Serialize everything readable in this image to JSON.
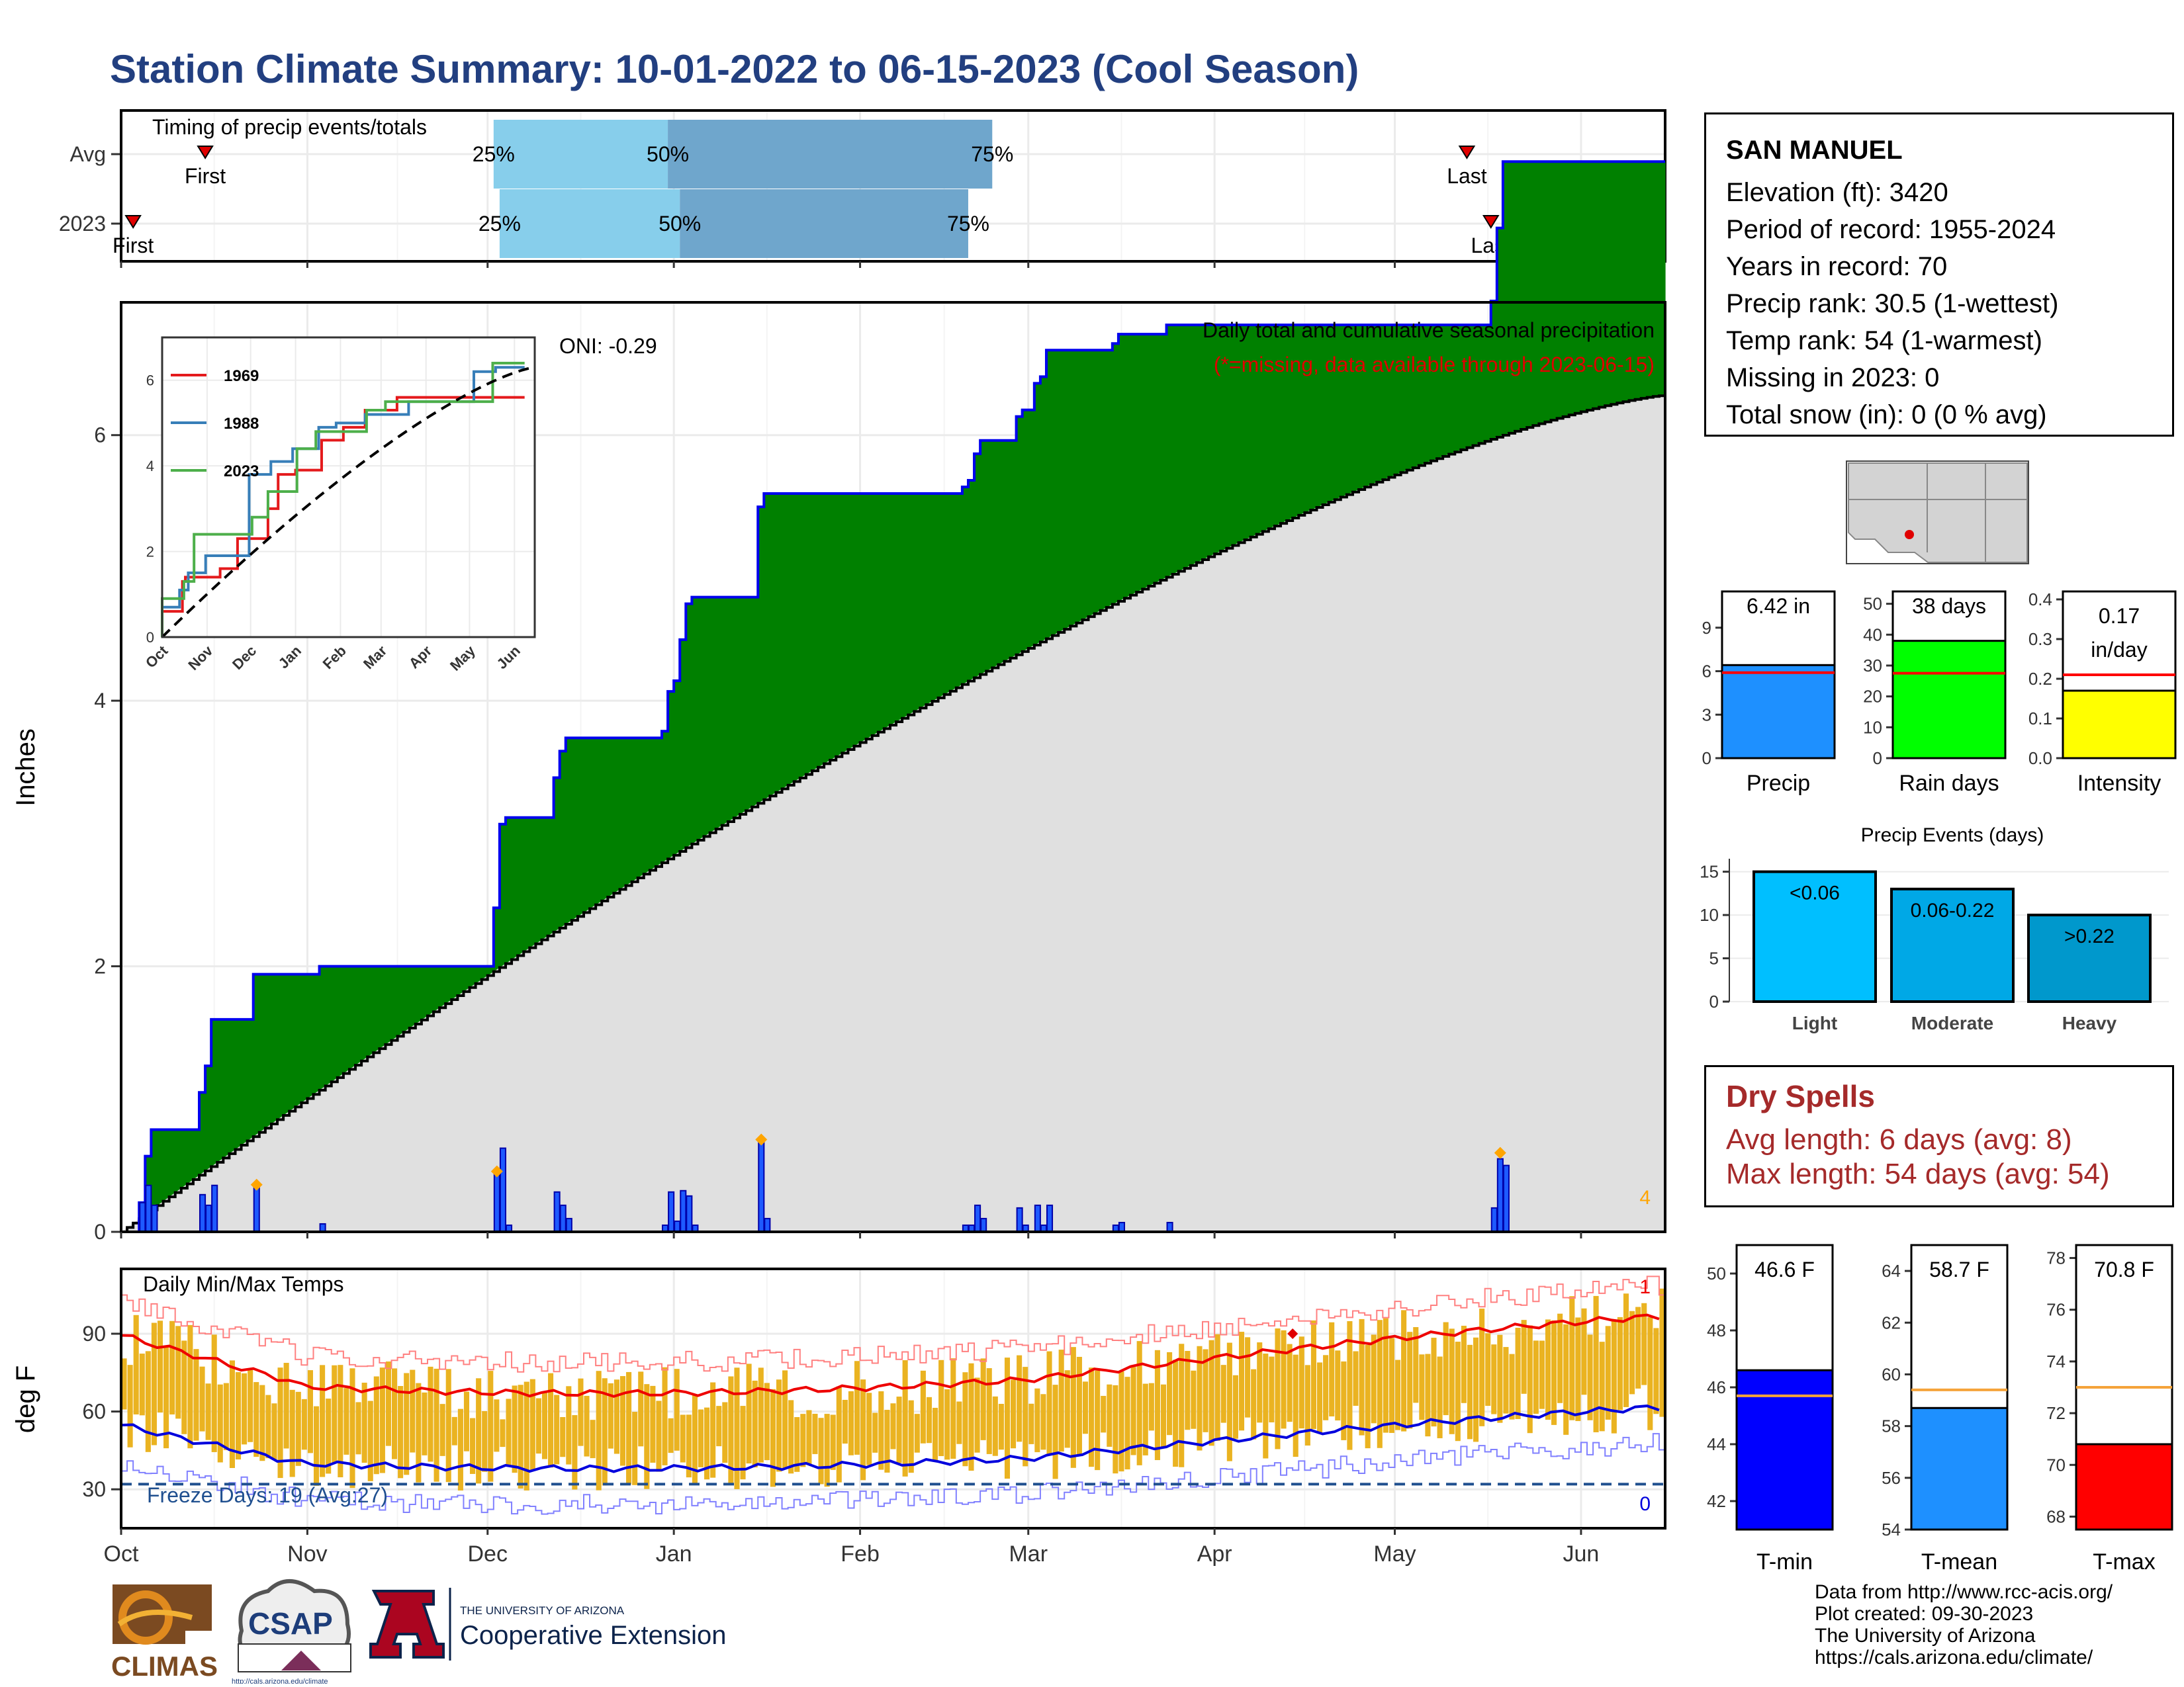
{
  "title": "Station Climate Summary: 10-01-2022 to 06-15-2023 (Cool Season)",
  "station": {
    "name": "SAN MANUEL",
    "lines": [
      "Elevation (ft): 3420",
      "Period of record: 1955-2024",
      "Years in record: 70",
      "Precip rank: 30.5 (1-wettest)",
      "Temp rank: 54 (1-warmest)",
      "Missing in 2023: 0",
      "Total snow (in): 0 (0 % avg)"
    ]
  },
  "timing": {
    "title": "Timing of precip events/totals",
    "rows": [
      {
        "label": "Avg",
        "first": "2022-10-15",
        "p25": "2022-12-02",
        "p50": "2022-12-31",
        "p75": "2023-02-23",
        "last": "2023-05-13"
      },
      {
        "label": "2023",
        "first": "2022-10-03",
        "p25": "2022-12-03",
        "p50": "2023-01-02",
        "p75": "2023-02-19",
        "last": "2023-05-17"
      }
    ],
    "first_label": "First",
    "last_label": "Last",
    "p25_label": "25%",
    "p50_label": "50%",
    "p75_label": "75%"
  },
  "precip_chart": {
    "ylabel": "Inches",
    "oni": "ONI: -0.29",
    "caption": "Daily total and cumulative seasonal precipitation",
    "caption2": "(*=missing, data available through 2023-06-15)",
    "corner": "4",
    "yticks": [
      0,
      2,
      4,
      6
    ],
    "ylim": [
      0,
      7.0
    ],
    "xticks": [
      "Oct",
      "Nov",
      "Dec",
      "Jan",
      "Feb",
      "Mar",
      "Apr",
      "May",
      "Jun"
    ]
  },
  "inset": {
    "series": [
      {
        "name": "1969",
        "color": "#e41a1c"
      },
      {
        "name": "1988",
        "color": "#377eb8"
      },
      {
        "name": "2023",
        "color": "#4daf4a"
      }
    ],
    "yticks": [
      0,
      2,
      4,
      6
    ],
    "xticks": [
      "Oct",
      "Nov",
      "Dec",
      "Jan",
      "Feb",
      "Mar",
      "Apr",
      "May",
      "Jun"
    ]
  },
  "temp_chart": {
    "title": "Daily Min/Max Temps",
    "ylabel": "deg F",
    "freeze": "Freeze Days: 19 (Avg:27)",
    "top_count": "1",
    "bottom_count": "0",
    "yticks": [
      30,
      60,
      90
    ],
    "ylim": [
      15,
      115
    ],
    "xticks": [
      "Oct",
      "Nov",
      "Dec",
      "Jan",
      "Feb",
      "Mar",
      "Apr",
      "May",
      "Jun"
    ]
  },
  "bars": [
    {
      "name": "Precip",
      "value": 6.42,
      "label": "6.42 in",
      "avg": 5.9,
      "ylim": [
        0,
        11.5
      ],
      "yticks": [
        0,
        3,
        6,
        9
      ],
      "color": "#1e90ff",
      "label2": ""
    },
    {
      "name": "Rain days",
      "value": 38,
      "label": "38 days",
      "avg": 27.5,
      "ylim": [
        0,
        54
      ],
      "yticks": [
        0,
        10,
        20,
        30,
        40,
        50
      ],
      "color": "#00ff00",
      "label2": ""
    },
    {
      "name": "Intensity",
      "value": 0.17,
      "label": "0.17",
      "label2": "in/day",
      "avg": 0.21,
      "ylim": [
        0,
        0.42
      ],
      "yticks": [
        0.0,
        0.1,
        0.2,
        0.3,
        0.4
      ],
      "color": "#ffff00"
    }
  ],
  "events": {
    "title": "Precip Events (days)",
    "categories": [
      "Light",
      "Moderate",
      "Heavy"
    ],
    "labels": [
      "<0.06",
      "0.06-0.22",
      ">0.22"
    ],
    "values": [
      15,
      13,
      10
    ],
    "colors": [
      "#00bfff",
      "#00a8e6",
      "#0098cc"
    ],
    "yticks": [
      0,
      5,
      10,
      15
    ]
  },
  "dry": {
    "title": "Dry Spells",
    "avg": "Avg length: 6 days (avg: 8)",
    "max": "Max length: 54 days (avg: 54)"
  },
  "temps": [
    {
      "name": "T-min",
      "value": 46.6,
      "label": "46.6 F",
      "avg": 45.7,
      "ylim": [
        41,
        51
      ],
      "yticks": [
        42,
        44,
        46,
        48,
        50
      ],
      "color": "#0000ff"
    },
    {
      "name": "T-mean",
      "value": 58.7,
      "label": "58.7 F",
      "avg": 59.4,
      "ylim": [
        54,
        65
      ],
      "yticks": [
        54,
        56,
        58,
        60,
        62,
        64
      ],
      "color": "#1e90ff"
    },
    {
      "name": "T-max",
      "value": 70.8,
      "label": "70.8 F",
      "avg": 73.0,
      "ylim": [
        67.5,
        78.5
      ],
      "yticks": [
        68,
        70,
        72,
        74,
        76,
        78
      ],
      "color": "#ff0000"
    }
  ],
  "credits": [
    "Data from http://www.rcc-acis.org/",
    "Plot created: 09-30-2023",
    "The University of Arizona",
    "https://cals.arizona.edu/climate/"
  ],
  "logos": {
    "climas": "CLIMAS",
    "csap": "CSAP",
    "csap_url": "http://cals.arizona.edu/climate",
    "ua_small": "THE UNIVERSITY OF ARIZONA",
    "ua_big": "Cooperative Extension"
  }
}
